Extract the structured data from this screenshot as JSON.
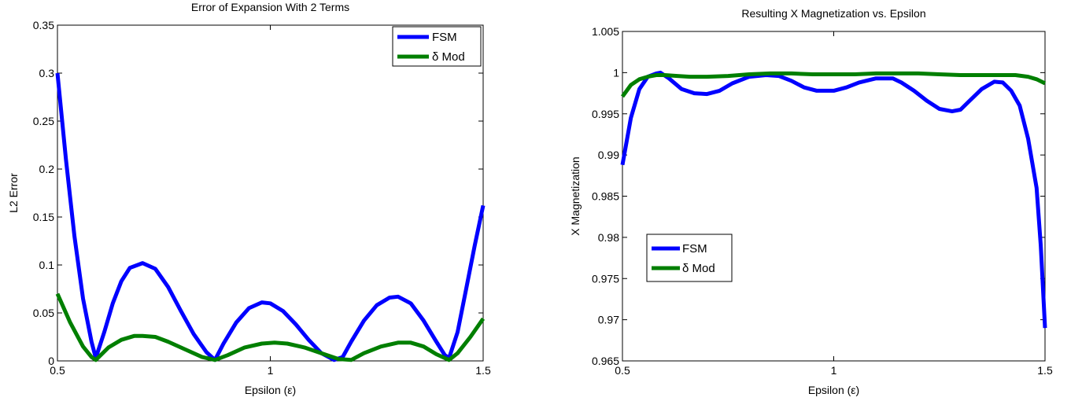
{
  "chart_data": [
    {
      "type": "line",
      "title": "Error of Expansion With 2 Terms",
      "xlabel": "Epsilon (ε)",
      "ylabel": "L2 Error",
      "xlim": [
        0.5,
        1.5
      ],
      "ylim": [
        0,
        0.35
      ],
      "xticks": [
        0.5,
        1,
        1.5
      ],
      "xtick_labels": [
        "0.5",
        "1",
        "1.5"
      ],
      "yticks": [
        0,
        0.05,
        0.1,
        0.15,
        0.2,
        0.25,
        0.3,
        0.35
      ],
      "ytick_labels": [
        "0",
        "0.05",
        "0.1",
        "0.15",
        "0.2",
        "0.25",
        "0.3",
        "0.35"
      ],
      "grid": false,
      "legend_position": "top-right",
      "series": [
        {
          "name": "FSM",
          "color": "#0000ff",
          "x": [
            0.5,
            0.52,
            0.54,
            0.56,
            0.58,
            0.59,
            0.61,
            0.63,
            0.65,
            0.67,
            0.7,
            0.73,
            0.76,
            0.79,
            0.82,
            0.85,
            0.87,
            0.89,
            0.92,
            0.95,
            0.98,
            1.0,
            1.03,
            1.06,
            1.09,
            1.12,
            1.15,
            1.17,
            1.19,
            1.22,
            1.25,
            1.28,
            1.3,
            1.33,
            1.36,
            1.39,
            1.41,
            1.42,
            1.44,
            1.46,
            1.48,
            1.5
          ],
          "y": [
            0.3,
            0.21,
            0.13,
            0.065,
            0.02,
            0.003,
            0.03,
            0.06,
            0.083,
            0.097,
            0.102,
            0.096,
            0.077,
            0.052,
            0.028,
            0.009,
            0.001,
            0.018,
            0.04,
            0.055,
            0.061,
            0.06,
            0.052,
            0.038,
            0.022,
            0.008,
            0.001,
            0.004,
            0.02,
            0.042,
            0.058,
            0.066,
            0.067,
            0.06,
            0.042,
            0.02,
            0.006,
            0.003,
            0.03,
            0.075,
            0.12,
            0.162
          ]
        },
        {
          "name": "δ Mod",
          "color": "#007f00",
          "x": [
            0.5,
            0.53,
            0.56,
            0.58,
            0.59,
            0.62,
            0.65,
            0.68,
            0.7,
            0.73,
            0.76,
            0.8,
            0.84,
            0.87,
            0.9,
            0.94,
            0.98,
            1.01,
            1.04,
            1.08,
            1.12,
            1.16,
            1.19,
            1.22,
            1.26,
            1.3,
            1.33,
            1.36,
            1.39,
            1.42,
            1.44,
            1.47,
            1.5
          ],
          "y": [
            0.07,
            0.04,
            0.015,
            0.004,
            0.001,
            0.014,
            0.022,
            0.026,
            0.026,
            0.025,
            0.02,
            0.012,
            0.004,
            0.001,
            0.006,
            0.014,
            0.018,
            0.019,
            0.018,
            0.014,
            0.008,
            0.002,
            0.001,
            0.008,
            0.015,
            0.019,
            0.019,
            0.015,
            0.007,
            0.001,
            0.008,
            0.025,
            0.044
          ]
        }
      ]
    },
    {
      "type": "line",
      "title": "Resulting X Magnetization vs. Epsilon",
      "xlabel": "Epsilon (ε)",
      "ylabel": "X Magnetization",
      "xlim": [
        0.5,
        1.5
      ],
      "ylim": [
        0.965,
        1.005
      ],
      "xticks": [
        0.5,
        1,
        1.5
      ],
      "xtick_labels": [
        "0.5",
        "1",
        "1.5"
      ],
      "yticks": [
        0.965,
        0.97,
        0.975,
        0.98,
        0.985,
        0.99,
        0.995,
        1.0,
        1.005
      ],
      "ytick_labels": [
        "0.965",
        "0.97",
        "0.975",
        "0.98",
        "0.985",
        "0.99",
        "0.995",
        "1",
        "1.005"
      ],
      "grid": false,
      "legend_position": "middle-left",
      "series": [
        {
          "name": "FSM",
          "color": "#0000ff",
          "x": [
            0.5,
            0.52,
            0.54,
            0.56,
            0.58,
            0.59,
            0.61,
            0.64,
            0.67,
            0.7,
            0.73,
            0.76,
            0.8,
            0.84,
            0.87,
            0.9,
            0.93,
            0.96,
            1.0,
            1.03,
            1.06,
            1.1,
            1.14,
            1.16,
            1.19,
            1.22,
            1.25,
            1.28,
            1.3,
            1.32,
            1.35,
            1.38,
            1.4,
            1.42,
            1.44,
            1.46,
            1.48,
            1.49,
            1.5
          ],
          "y": [
            0.9888,
            0.9945,
            0.998,
            0.9995,
            0.9999,
            1.0,
            0.9993,
            0.998,
            0.9975,
            0.9974,
            0.9978,
            0.9987,
            0.9995,
            0.9997,
            0.9996,
            0.999,
            0.9982,
            0.9978,
            0.9978,
            0.9982,
            0.9988,
            0.9993,
            0.9993,
            0.9988,
            0.9978,
            0.9966,
            0.9956,
            0.9953,
            0.9955,
            0.9965,
            0.998,
            0.9989,
            0.9988,
            0.9978,
            0.996,
            0.992,
            0.986,
            0.979,
            0.969
          ]
        },
        {
          "name": "δ Mod",
          "color": "#007f00",
          "x": [
            0.5,
            0.52,
            0.54,
            0.56,
            0.58,
            0.6,
            0.63,
            0.66,
            0.7,
            0.75,
            0.8,
            0.85,
            0.9,
            0.95,
            1.0,
            1.05,
            1.1,
            1.15,
            1.2,
            1.25,
            1.3,
            1.35,
            1.4,
            1.43,
            1.46,
            1.48,
            1.5
          ],
          "y": [
            0.9971,
            0.9985,
            0.9992,
            0.9995,
            0.9997,
            0.9997,
            0.9996,
            0.9995,
            0.9995,
            0.9996,
            0.9998,
            0.9999,
            0.9999,
            0.9998,
            0.9998,
            0.9998,
            0.9999,
            0.9999,
            0.9999,
            0.9998,
            0.9997,
            0.9997,
            0.9997,
            0.9997,
            0.9995,
            0.9992,
            0.9987
          ]
        }
      ]
    }
  ]
}
